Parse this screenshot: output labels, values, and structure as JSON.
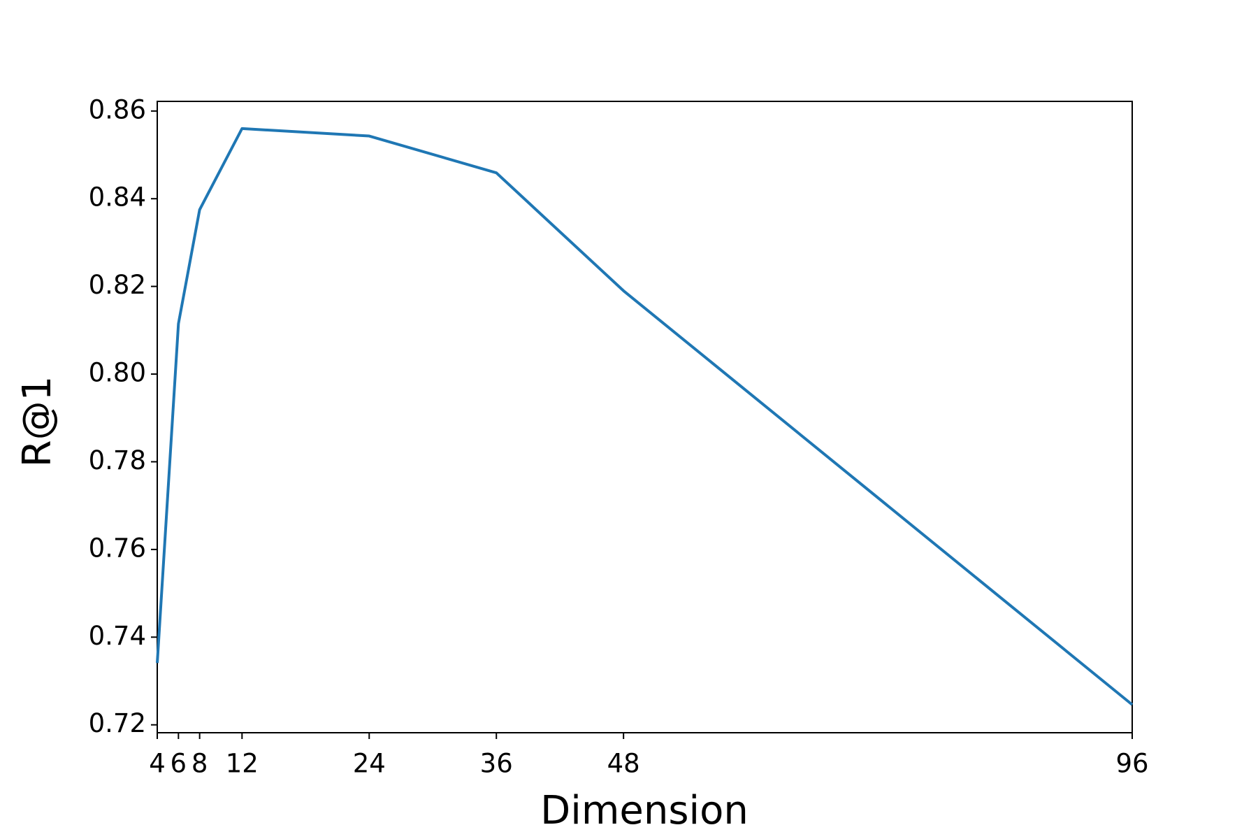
{
  "chart_data": {
    "type": "line",
    "xlabel": "Dimension",
    "ylabel": "R@1",
    "x": [
      4,
      6,
      8,
      12,
      24,
      36,
      48,
      96
    ],
    "series": [
      {
        "color": "#1f77b4",
        "values": [
          0.7341,
          0.8115,
          0.8375,
          0.856,
          0.8543,
          0.8459,
          0.819,
          0.7246
        ]
      }
    ],
    "xlim": [
      4,
      96
    ],
    "xticks": [
      4,
      6,
      8,
      12,
      24,
      36,
      48,
      96
    ],
    "ylim": [
      0.7182,
      0.8622
    ],
    "yticks": [
      {
        "value": 0.72,
        "label": "0.72"
      },
      {
        "value": 0.74,
        "label": "0.74"
      },
      {
        "value": 0.76,
        "label": "0.76"
      },
      {
        "value": 0.78,
        "label": "0.78"
      },
      {
        "value": 0.8,
        "label": "0.80"
      },
      {
        "value": 0.82,
        "label": "0.82"
      },
      {
        "value": 0.84,
        "label": "0.84"
      },
      {
        "value": 0.86,
        "label": "0.86"
      }
    ],
    "grid": false
  }
}
